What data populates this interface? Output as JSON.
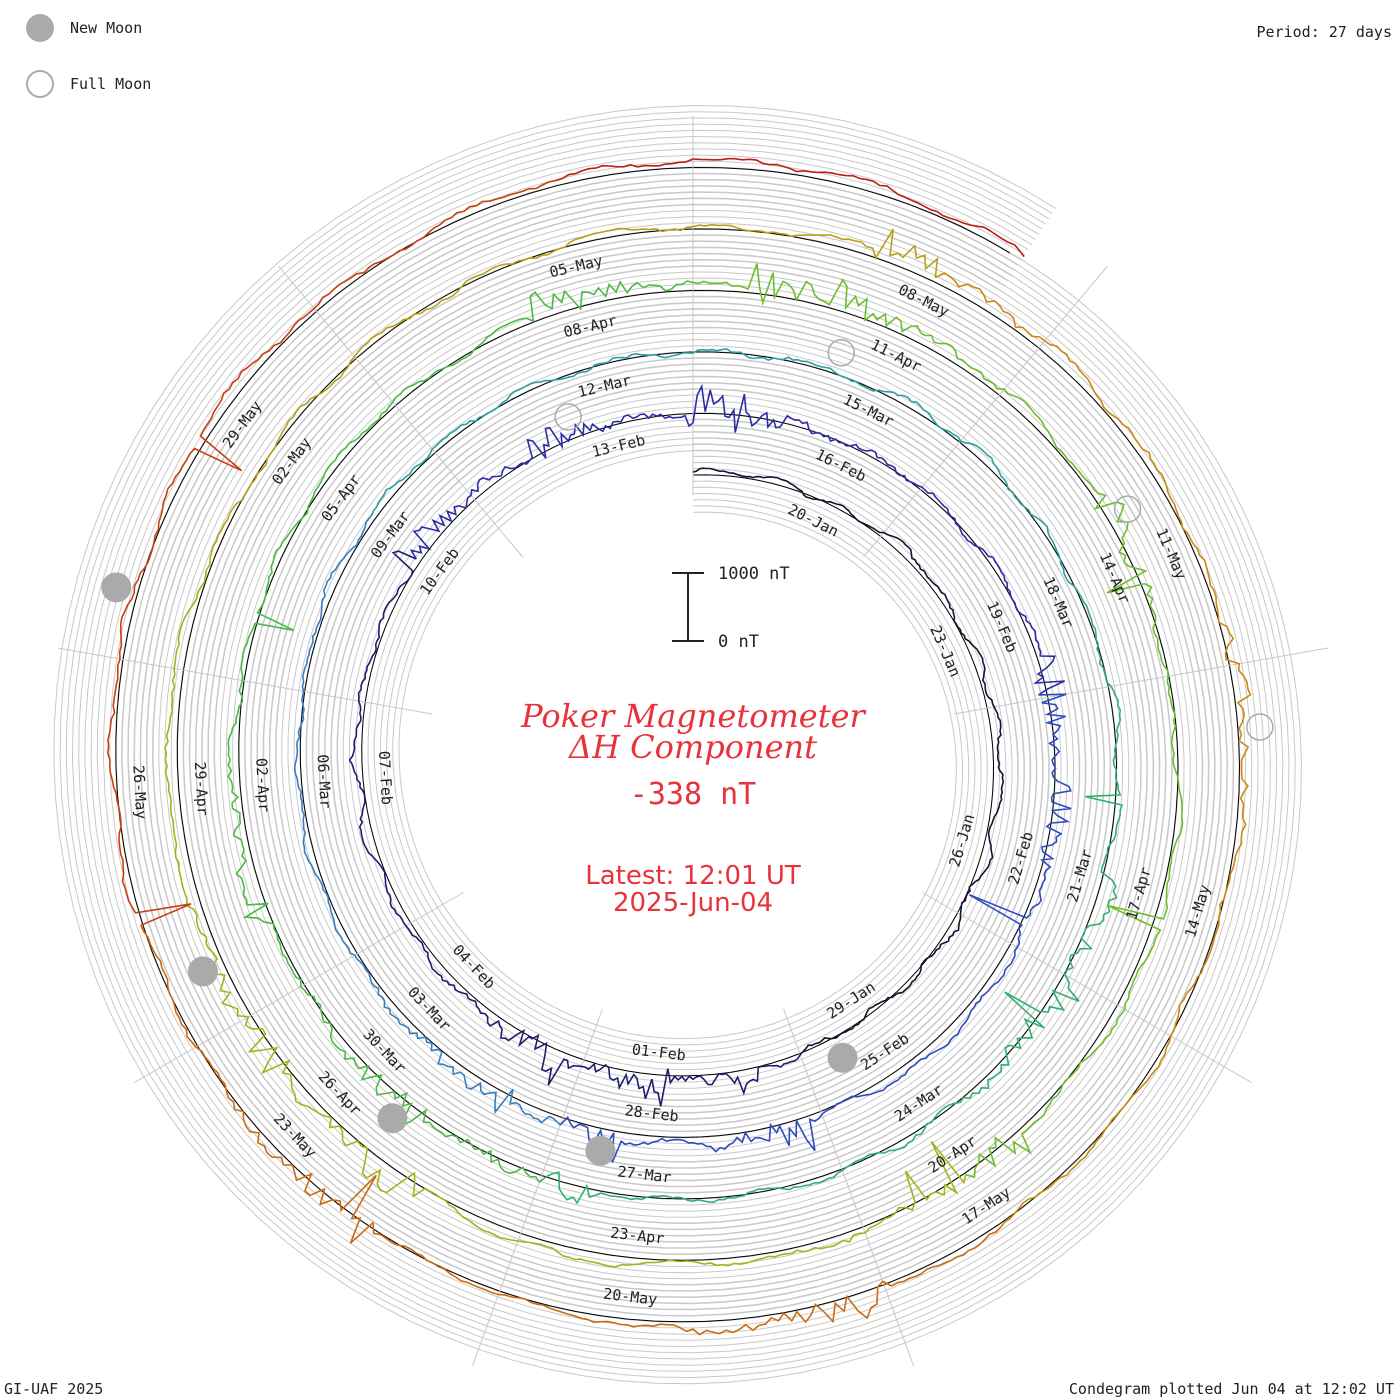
{
  "legend": {
    "new_moon_label": "New Moon",
    "full_moon_label": "Full Moon"
  },
  "period_label": "Period: 27 days",
  "footer_left": "GI-UAF 2025",
  "footer_right": "Condegram plotted Jun 04 at 12:02 UT",
  "colors": {
    "title": "#e8323c",
    "grid": "#c8c8c8",
    "moon": "#aaaaaa",
    "baseline": "#000000"
  },
  "chart_data": {
    "type": "line",
    "title": "Poker Magnetometer",
    "subtitle": "ΔH Component",
    "current_value": "-338 nT",
    "latest_line1": "Latest: 12:01 UT",
    "latest_line2": "2025-Jun-04",
    "scale_bar": {
      "top_label": "1000 nT",
      "bottom_label": "0 nT"
    },
    "period_days": 27,
    "start_date": "2025-01-18",
    "end_date": "2025-06-04",
    "series": [
      {
        "color": "#141432",
        "start": "2025-01-18",
        "end": "2025-02-14"
      },
      {
        "color": "#2c2ca8",
        "start": "2025-02-14",
        "end": "2025-03-13"
      },
      {
        "color": "#2ca0a0",
        "start": "2025-03-13",
        "end": "2025-04-09"
      },
      {
        "color": "#6cbe2c",
        "start": "2025-04-09",
        "end": "2025-05-06"
      },
      {
        "color": "#b8a018",
        "start": "2025-05-06",
        "end": "2025-06-04"
      }
    ],
    "segments": [
      {
        "start": "2025-01-18",
        "color": "#141432"
      },
      {
        "start": "2025-01-30",
        "color": "#1e1e6e"
      },
      {
        "start": "2025-02-10",
        "color": "#2c2ca8"
      },
      {
        "start": "2025-02-20",
        "color": "#2e4cc0"
      },
      {
        "start": "2025-03-01",
        "color": "#3a7cc0"
      },
      {
        "start": "2025-03-09",
        "color": "#2ca0a0"
      },
      {
        "start": "2025-03-18",
        "color": "#30b070"
      },
      {
        "start": "2025-03-28",
        "color": "#4cb848"
      },
      {
        "start": "2025-04-09",
        "color": "#6cbe2c"
      },
      {
        "start": "2025-04-20",
        "color": "#a4b418"
      },
      {
        "start": "2025-05-01",
        "color": "#b8a018"
      },
      {
        "start": "2025-05-08",
        "color": "#c88a10"
      },
      {
        "start": "2025-05-17",
        "color": "#cc6a10"
      },
      {
        "start": "2025-05-25",
        "color": "#c84010"
      },
      {
        "start": "2025-06-01",
        "color": "#c01c10"
      }
    ],
    "date_labels": [
      "20-Jan",
      "23-Jan",
      "26-Jan",
      "29-Jan",
      "01-Feb",
      "04-Feb",
      "07-Feb",
      "10-Feb",
      "13-Feb",
      "16-Feb",
      "19-Feb",
      "22-Feb",
      "25-Feb",
      "28-Feb",
      "03-Mar",
      "06-Mar",
      "09-Mar",
      "12-Mar",
      "15-Mar",
      "18-Mar",
      "21-Mar",
      "24-Mar",
      "27-Mar",
      "30-Mar",
      "02-Apr",
      "05-Apr",
      "08-Apr",
      "11-Apr",
      "14-Apr",
      "17-Apr",
      "20-Apr",
      "23-Apr",
      "26-Apr",
      "29-Apr",
      "02-May",
      "05-May",
      "08-May",
      "11-May",
      "14-May",
      "17-May",
      "20-May",
      "23-May",
      "26-May",
      "29-May"
    ],
    "moon_phases": [
      {
        "type": "new",
        "date": "2025-01-29"
      },
      {
        "type": "full",
        "date": "2025-02-12"
      },
      {
        "type": "new",
        "date": "2025-02-28"
      },
      {
        "type": "full",
        "date": "2025-03-14"
      },
      {
        "type": "new",
        "date": "2025-03-29"
      },
      {
        "type": "full",
        "date": "2025-04-13"
      },
      {
        "type": "new",
        "date": "2025-04-27"
      },
      {
        "type": "full",
        "date": "2025-05-12"
      },
      {
        "type": "new",
        "date": "2025-05-27"
      }
    ]
  }
}
